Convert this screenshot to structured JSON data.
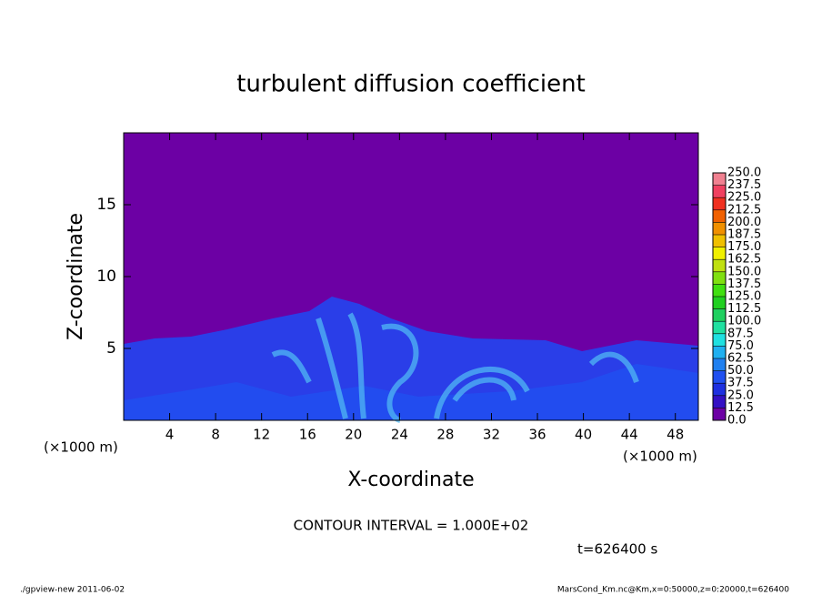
{
  "chart_data": {
    "type": "contour",
    "title": "turbulent diffusion coefficient",
    "x_label": "X-coordinate",
    "y_label": "Z-coordinate",
    "axis_unit": "(×1000 m)",
    "xlim": [
      0,
      50
    ],
    "ylim": [
      0,
      20
    ],
    "xticks": [
      4,
      8,
      12,
      16,
      20,
      24,
      28,
      32,
      36,
      40,
      44,
      48
    ],
    "yticks": [
      5,
      10,
      15
    ],
    "colorbar": {
      "levels": [
        {
          "value": 0,
          "label": "0.0"
        },
        {
          "value": 12.5,
          "label": "12.5"
        },
        {
          "value": 25,
          "label": "25.0"
        },
        {
          "value": 37.5,
          "label": "37.5"
        },
        {
          "value": 50,
          "label": "50.0"
        },
        {
          "value": 62.5,
          "label": "62.5"
        },
        {
          "value": 75,
          "label": "75.0"
        },
        {
          "value": 87.5,
          "label": "87.5"
        },
        {
          "value": 100,
          "label": "100.0"
        },
        {
          "value": 112.5,
          "label": "112.5"
        },
        {
          "value": 125,
          "label": "125.0"
        },
        {
          "value": 137.5,
          "label": "137.5"
        },
        {
          "value": 150,
          "label": "150.0"
        },
        {
          "value": 162.5,
          "label": "162.5"
        },
        {
          "value": 175,
          "label": "175.0"
        },
        {
          "value": 187.5,
          "label": "187.5"
        },
        {
          "value": 200,
          "label": "200.0"
        },
        {
          "value": 212.5,
          "label": "212.5"
        },
        {
          "value": 225,
          "label": "225.0"
        },
        {
          "value": 237.5,
          "label": "237.5"
        },
        {
          "value": 250,
          "label": "250.0"
        }
      ],
      "colors": [
        "#6c00a4",
        "#3410c4",
        "#1e30e0",
        "#2050f0",
        "#2080f0",
        "#20b0f0",
        "#20e0e0",
        "#20e0a0",
        "#20d060",
        "#20d020",
        "#40e010",
        "#80e010",
        "#c0e010",
        "#f0f000",
        "#f0c000",
        "#f09000",
        "#f06000",
        "#f03020",
        "#f04060",
        "#f08090"
      ]
    },
    "contour_interval_label": "CONTOUR INTERVAL = 1.000E+02",
    "time_label": "t=626400 s"
  },
  "footer": {
    "left": "./gpview-new  2011-06-02",
    "right": "MarsCond_Km.nc@Km,x=0:50000,z=0:20000,t=626400"
  }
}
